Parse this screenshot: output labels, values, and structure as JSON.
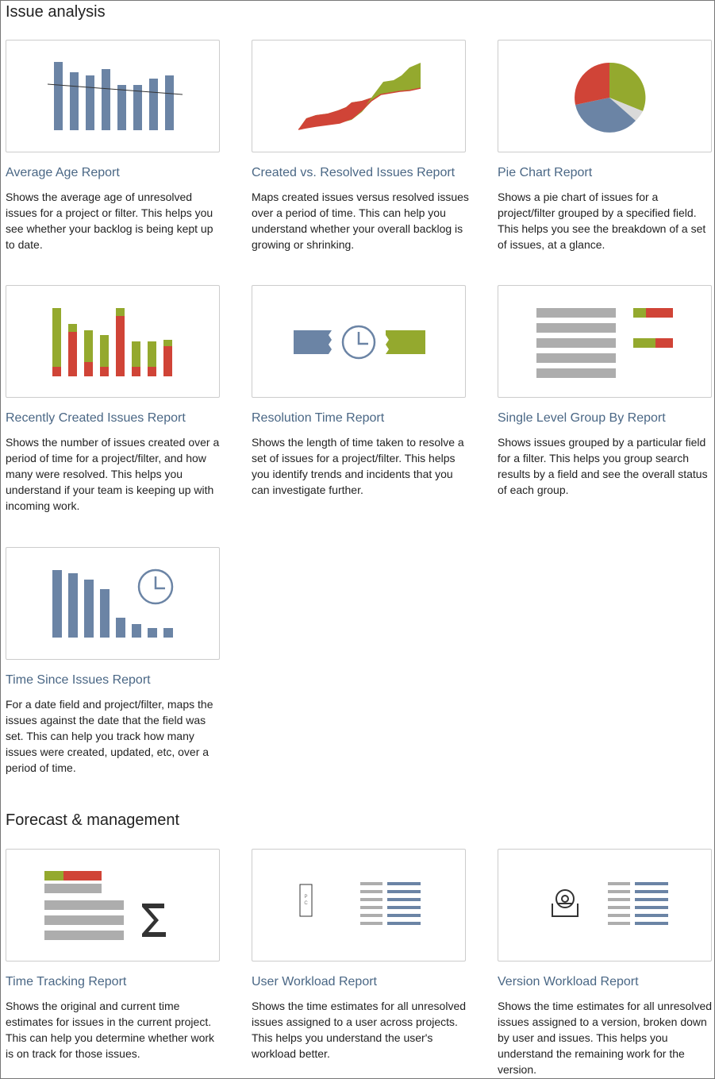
{
  "sections": [
    {
      "title": "Issue analysis",
      "reports": [
        {
          "title": "Average Age Report",
          "description": "Shows the average age of unresolved issues for a project or filter. This helps you see whether your backlog is being kept up to date.",
          "icon": "average-age-chart-icon"
        },
        {
          "title": "Created vs. Resolved Issues Report",
          "description": "Maps created issues versus resolved issues over a period of time. This can help you understand whether your overall backlog is growing or shrinking.",
          "icon": "created-vs-resolved-chart-icon"
        },
        {
          "title": "Pie Chart Report",
          "description": "Shows a pie chart of issues for a project/filter grouped by a specified field. This helps you see the breakdown of a set of issues, at a glance.",
          "icon": "pie-chart-icon"
        },
        {
          "title": "Recently Created Issues Report",
          "description": "Shows the number of issues created over a period of time for a project/filter, and how many were resolved. This helps you understand if your team is keeping up with incoming work.",
          "icon": "recently-created-chart-icon"
        },
        {
          "title": "Resolution Time Report",
          "description": "Shows the length of time taken to resolve a set of issues for a project/filter. This helps you identify trends and incidents that you can investigate further.",
          "icon": "resolution-time-icon"
        },
        {
          "title": "Single Level Group By Report",
          "description": "Shows issues grouped by a particular field for a filter. This helps you group search results by a field and see the overall status of each group.",
          "icon": "group-by-icon"
        },
        {
          "title": "Time Since Issues Report",
          "description": "For a date field and project/filter, maps the issues against the date that the field was set. This can help you track how many issues were created, updated, etc, over a period of time.",
          "icon": "time-since-chart-icon"
        }
      ]
    },
    {
      "title": "Forecast & management",
      "reports": [
        {
          "title": "Time Tracking Report",
          "description": "Shows the original and current time estimates for issues in the current project. This can help you determine whether work is on track for those issues.",
          "icon": "time-tracking-icon"
        },
        {
          "title": "User Workload Report",
          "description": "Shows the time estimates for all unresolved issues assigned to a user across projects. This helps you understand the user's workload better.",
          "icon": "user-workload-icon"
        },
        {
          "title": "Version Workload Report",
          "description": "Shows the time estimates for all unresolved issues assigned to a version, broken down by user and issues. This helps you understand the remaining work for the version.",
          "icon": "version-workload-icon"
        }
      ]
    }
  ],
  "colors": {
    "blue": "#6b84a5",
    "red": "#d04437",
    "green": "#94a92e",
    "gray": "#adadad",
    "link": "#4a6785"
  }
}
